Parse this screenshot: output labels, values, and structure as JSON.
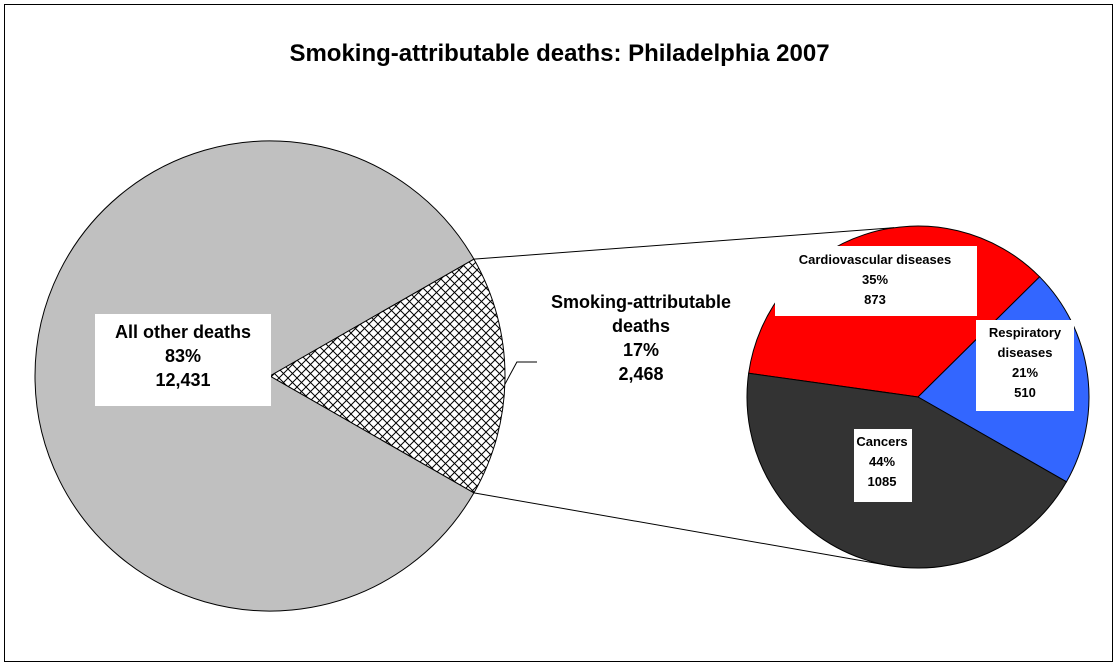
{
  "chart_data": {
    "type": "pie",
    "title": "Smoking-attributable deaths: Philadelphia 2007",
    "main_pie": {
      "slices": [
        {
          "label": "All other deaths",
          "percent": "83%",
          "value": 12431,
          "value_label": "12,431",
          "color": "#C0C0C0"
        },
        {
          "label": "Smoking-attributable deaths",
          "percent": "17%",
          "value": 2468,
          "value_label": "2,468",
          "color": "#FFFFFF",
          "pattern": "crosshatch"
        }
      ]
    },
    "breakdown_pie": {
      "of": "Smoking-attributable deaths",
      "slices": [
        {
          "label": "Cardiovascular diseases",
          "percent": "35%",
          "value": 873,
          "value_label": "873",
          "color": "#FF0000"
        },
        {
          "label": "Respiratory diseases",
          "percent": "21%",
          "value": 510,
          "value_label": "510",
          "color": "#3366FF"
        },
        {
          "label": "Cancers",
          "percent": "44%",
          "value": 1085,
          "value_label": "1085",
          "color": "#333333"
        }
      ]
    }
  }
}
